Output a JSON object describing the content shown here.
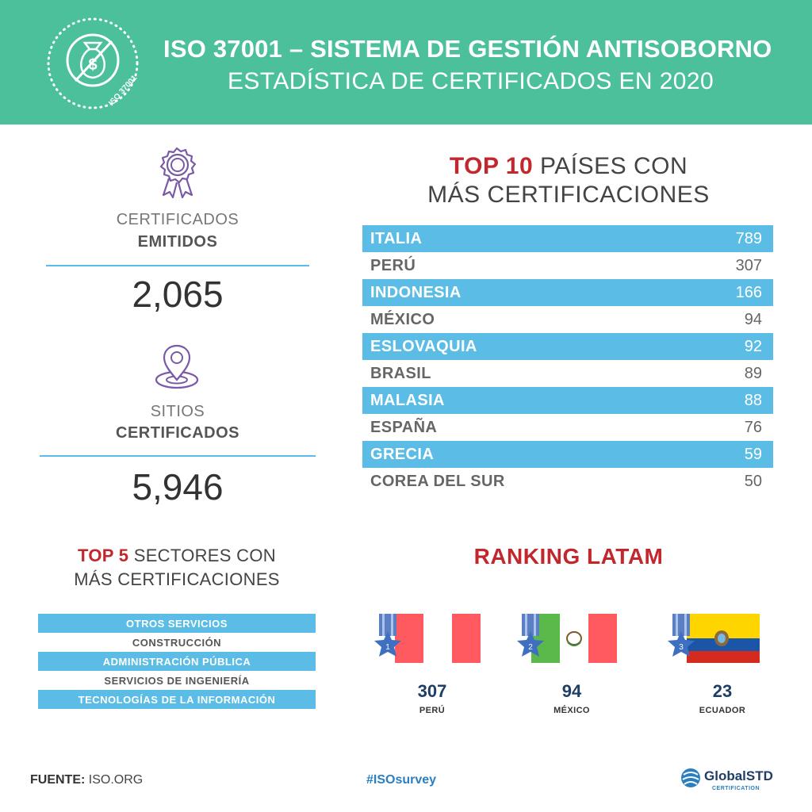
{
  "header": {
    "title": "ISO 37001 – SISTEMA DE GESTIÓN ANTISOBORNO",
    "subtitle": "ESTADÍSTICA DE CERTIFICADOS EN 2020",
    "badge_text": "ISO 37001",
    "badge_icon": "money-bag-crossed-icon",
    "bg_color": "#4cbf9b"
  },
  "stats": {
    "certificates": {
      "label_light": "CERTIFICADOS",
      "label_bold": "EMITIDOS",
      "value": "2,065",
      "icon": "award-ribbon-icon"
    },
    "sites": {
      "label_light": "SITIOS",
      "label_bold": "CERTIFICADOS",
      "value": "5,946",
      "icon": "location-pin-icon"
    }
  },
  "top10": {
    "title_accent": "TOP 10",
    "title_rest": " PAÍSES CON",
    "title_line2": "MÁS CERTIFICACIONES",
    "rows": [
      {
        "country": "ITALIA",
        "count": "789"
      },
      {
        "country": "PERÚ",
        "count": "307"
      },
      {
        "country": "INDONESIA",
        "count": "166"
      },
      {
        "country": "MÉXICO",
        "count": "94"
      },
      {
        "country": "ESLOVAQUIA",
        "count": "92"
      },
      {
        "country": "BRASIL",
        "count": "89"
      },
      {
        "country": "MALASIA",
        "count": "88"
      },
      {
        "country": "ESPAÑA",
        "count": "76"
      },
      {
        "country": "GRECIA",
        "count": "59"
      },
      {
        "country": "COREA DEL SUR",
        "count": "50"
      }
    ]
  },
  "top5": {
    "title_accent": "TOP 5",
    "title_rest": " SECTORES CON",
    "title_line2": "MÁS CERTIFICACIONES",
    "rows": [
      "OTROS SERVICIOS",
      "CONSTRUCCIÓN",
      "ADMINISTRACIÓN PÚBLICA",
      "SERVICIOS DE INGENIERÍA",
      "TECNOLOGÍAS DE LA INFORMACIÓN"
    ]
  },
  "latam": {
    "title": "RANKING LATAM",
    "items": [
      {
        "rank": "1",
        "value": "307",
        "country": "PERÚ",
        "flag": "peru-flag"
      },
      {
        "rank": "2",
        "value": "94",
        "country": "MÉXICO",
        "flag": "mexico-flag"
      },
      {
        "rank": "3",
        "value": "23",
        "country": "ECUADOR",
        "flag": "ecuador-flag"
      }
    ]
  },
  "footer": {
    "source_label": "FUENTE:",
    "source_value": " ISO.ORG",
    "hashtag": "#ISOsurvey",
    "logo_name": "GlobalSTD",
    "logo_sub": "CERTIFICATION"
  },
  "colors": {
    "accent_red": "#c1272d",
    "highlight_blue": "#5bbde6",
    "navy": "#1e3e66",
    "green": "#4cbf9b"
  }
}
